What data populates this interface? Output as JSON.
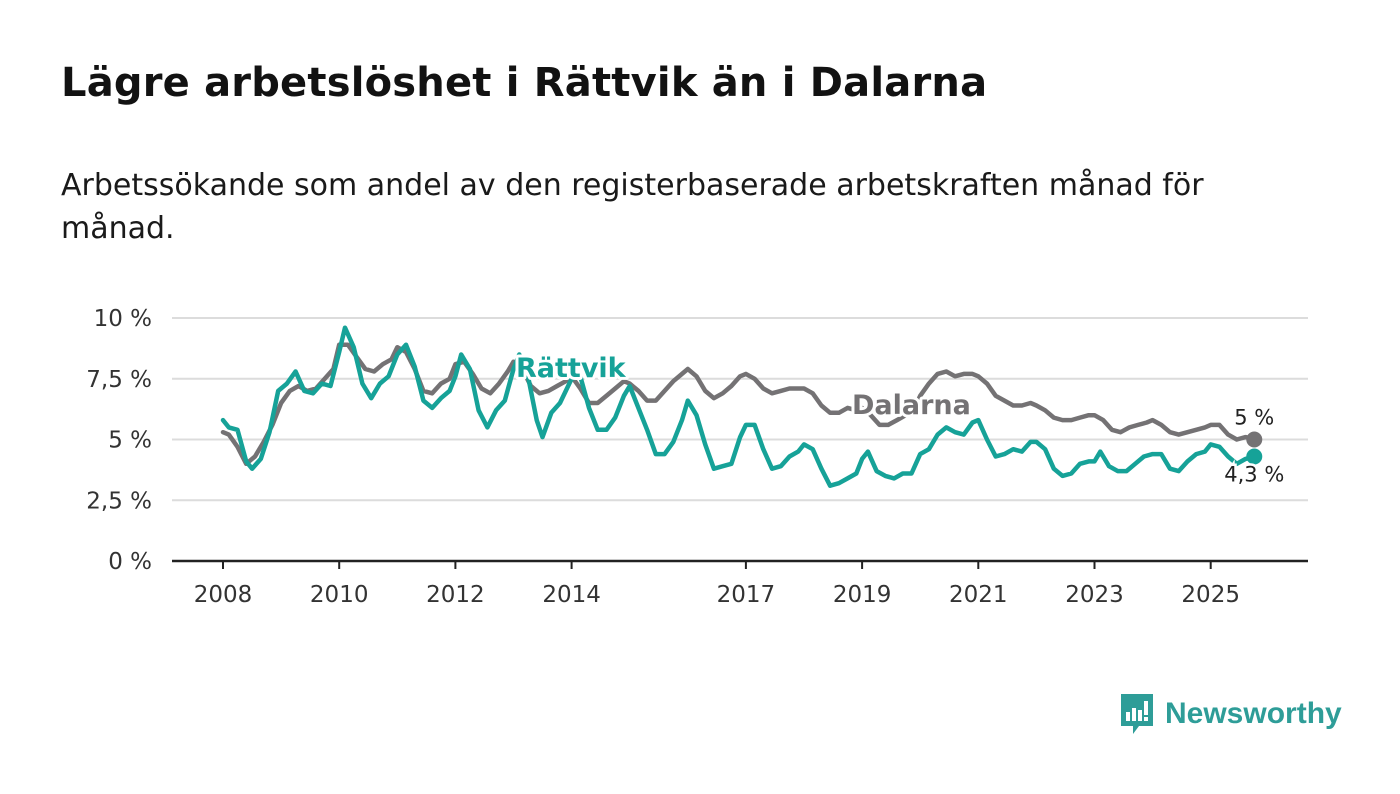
{
  "title": "Lägre arbetslöshet i Rättvik än i Dalarna",
  "subtitle": "Arbetssökande som andel av den registerbaserade arbetskraften månad för månad.",
  "brand": {
    "name": "Newsworthy",
    "color": "#2e9d98",
    "icon": "newsworthy-bar-chart-icon"
  },
  "colors": {
    "dalarna": "#747274",
    "rattvik": "#16a298",
    "grid": "#dcdcdc",
    "axis": "#222222"
  },
  "chart_data": {
    "type": "line",
    "title": "Lägre arbetslöshet i Rättvik än i Dalarna",
    "xlabel": "",
    "ylabel": "",
    "ylim": [
      0,
      10
    ],
    "xlim": [
      2007.6,
      2026.6
    ],
    "y_ticks": [
      0,
      2.5,
      5,
      7.5,
      10
    ],
    "y_tick_labels": [
      "0 %",
      "2,5 %",
      "5 %",
      "7,5 %",
      "10 %"
    ],
    "x_ticks": [
      2008,
      2010,
      2012,
      2014,
      2017,
      2019,
      2021,
      2023,
      2025
    ],
    "x_tick_labels": [
      "2008",
      "2010",
      "2012",
      "2014",
      "2017",
      "2019",
      "2021",
      "2023",
      "2025"
    ],
    "grid": true,
    "legend": "inline labels",
    "end_labels": {
      "dalarna": "5 %",
      "rattvik": "4,3 %"
    },
    "series": [
      {
        "name": "Dalarna",
        "points": [
          [
            2008.0,
            5.3
          ],
          [
            2008.1,
            5.2
          ],
          [
            2008.25,
            4.7
          ],
          [
            2008.4,
            4.0
          ],
          [
            2008.55,
            4.3
          ],
          [
            2008.7,
            4.9
          ],
          [
            2008.85,
            5.6
          ],
          [
            2009.0,
            6.5
          ],
          [
            2009.15,
            7.0
          ],
          [
            2009.3,
            7.2
          ],
          [
            2009.45,
            7.0
          ],
          [
            2009.6,
            7.1
          ],
          [
            2009.75,
            7.5
          ],
          [
            2009.9,
            7.9
          ],
          [
            2010.0,
            8.9
          ],
          [
            2010.15,
            8.9
          ],
          [
            2010.3,
            8.4
          ],
          [
            2010.45,
            7.9
          ],
          [
            2010.6,
            7.8
          ],
          [
            2010.75,
            8.1
          ],
          [
            2010.9,
            8.3
          ],
          [
            2011.0,
            8.8
          ],
          [
            2011.15,
            8.6
          ],
          [
            2011.3,
            7.9
          ],
          [
            2011.45,
            7.0
          ],
          [
            2011.6,
            6.9
          ],
          [
            2011.75,
            7.3
          ],
          [
            2011.9,
            7.5
          ],
          [
            2012.0,
            8.1
          ],
          [
            2012.15,
            8.2
          ],
          [
            2012.3,
            7.7
          ],
          [
            2012.45,
            7.1
          ],
          [
            2012.6,
            6.9
          ],
          [
            2012.75,
            7.3
          ],
          [
            2012.9,
            7.8
          ],
          [
            2013.0,
            8.2
          ],
          [
            2013.15,
            7.9
          ],
          [
            2013.3,
            7.2
          ],
          [
            2013.45,
            6.9
          ],
          [
            2013.6,
            7.0
          ],
          [
            2013.75,
            7.2
          ],
          [
            2013.9,
            7.4
          ],
          [
            2014.0,
            7.6
          ],
          [
            2014.15,
            7.1
          ],
          [
            2014.3,
            6.5
          ],
          [
            2014.45,
            6.5
          ],
          [
            2014.6,
            6.8
          ],
          [
            2014.75,
            7.1
          ],
          [
            2014.9,
            7.4
          ],
          [
            2015.0,
            7.3
          ],
          [
            2015.15,
            7.0
          ],
          [
            2015.3,
            6.6
          ],
          [
            2015.45,
            6.6
          ],
          [
            2015.6,
            7.0
          ],
          [
            2015.75,
            7.4
          ],
          [
            2015.9,
            7.7
          ],
          [
            2016.0,
            7.9
          ],
          [
            2016.15,
            7.6
          ],
          [
            2016.3,
            7.0
          ],
          [
            2016.45,
            6.7
          ],
          [
            2016.6,
            6.9
          ],
          [
            2016.75,
            7.2
          ],
          [
            2016.9,
            7.6
          ],
          [
            2017.0,
            7.7
          ],
          [
            2017.15,
            7.5
          ],
          [
            2017.3,
            7.1
          ],
          [
            2017.45,
            6.9
          ],
          [
            2017.6,
            7.0
          ],
          [
            2017.75,
            7.1
          ],
          [
            2017.9,
            7.1
          ],
          [
            2018.0,
            7.1
          ],
          [
            2018.15,
            6.9
          ],
          [
            2018.3,
            6.4
          ],
          [
            2018.45,
            6.1
          ],
          [
            2018.6,
            6.1
          ],
          [
            2018.75,
            6.3
          ],
          [
            2018.9,
            6.2
          ],
          [
            2019.0,
            6.3
          ],
          [
            2019.15,
            6.0
          ],
          [
            2019.3,
            5.6
          ],
          [
            2019.45,
            5.6
          ],
          [
            2019.6,
            5.8
          ],
          [
            2019.75,
            6.0
          ],
          [
            2019.9,
            6.3
          ],
          [
            2020.0,
            6.8
          ],
          [
            2020.15,
            7.3
          ],
          [
            2020.3,
            7.7
          ],
          [
            2020.45,
            7.8
          ],
          [
            2020.6,
            7.6
          ],
          [
            2020.75,
            7.7
          ],
          [
            2020.9,
            7.7
          ],
          [
            2021.0,
            7.6
          ],
          [
            2021.15,
            7.3
          ],
          [
            2021.3,
            6.8
          ],
          [
            2021.45,
            6.6
          ],
          [
            2021.6,
            6.4
          ],
          [
            2021.75,
            6.4
          ],
          [
            2021.9,
            6.5
          ],
          [
            2022.0,
            6.4
          ],
          [
            2022.15,
            6.2
          ],
          [
            2022.3,
            5.9
          ],
          [
            2022.45,
            5.8
          ],
          [
            2022.6,
            5.8
          ],
          [
            2022.75,
            5.9
          ],
          [
            2022.9,
            6.0
          ],
          [
            2023.0,
            6.0
          ],
          [
            2023.15,
            5.8
          ],
          [
            2023.3,
            5.4
          ],
          [
            2023.45,
            5.3
          ],
          [
            2023.6,
            5.5
          ],
          [
            2023.75,
            5.6
          ],
          [
            2023.9,
            5.7
          ],
          [
            2024.0,
            5.8
          ],
          [
            2024.15,
            5.6
          ],
          [
            2024.3,
            5.3
          ],
          [
            2024.45,
            5.2
          ],
          [
            2024.6,
            5.3
          ],
          [
            2024.75,
            5.4
          ],
          [
            2024.9,
            5.5
          ],
          [
            2025.0,
            5.6
          ],
          [
            2025.15,
            5.6
          ],
          [
            2025.3,
            5.2
          ],
          [
            2025.45,
            5.0
          ],
          [
            2025.6,
            5.1
          ],
          [
            2025.75,
            5.0
          ]
        ]
      },
      {
        "name": "Rättvik",
        "points": [
          [
            2008.0,
            5.8
          ],
          [
            2008.1,
            5.5
          ],
          [
            2008.25,
            5.4
          ],
          [
            2008.4,
            4.1
          ],
          [
            2008.5,
            3.8
          ],
          [
            2008.65,
            4.2
          ],
          [
            2008.8,
            5.3
          ],
          [
            2008.95,
            7.0
          ],
          [
            2009.1,
            7.3
          ],
          [
            2009.25,
            7.8
          ],
          [
            2009.4,
            7.0
          ],
          [
            2009.55,
            6.9
          ],
          [
            2009.7,
            7.3
          ],
          [
            2009.85,
            7.2
          ],
          [
            2010.0,
            8.6
          ],
          [
            2010.1,
            9.6
          ],
          [
            2010.25,
            8.8
          ],
          [
            2010.4,
            7.3
          ],
          [
            2010.55,
            6.7
          ],
          [
            2010.7,
            7.3
          ],
          [
            2010.85,
            7.6
          ],
          [
            2011.0,
            8.5
          ],
          [
            2011.15,
            8.9
          ],
          [
            2011.3,
            8.0
          ],
          [
            2011.45,
            6.6
          ],
          [
            2011.6,
            6.3
          ],
          [
            2011.75,
            6.7
          ],
          [
            2011.9,
            7.0
          ],
          [
            2012.0,
            7.6
          ],
          [
            2012.1,
            8.5
          ],
          [
            2012.25,
            7.9
          ],
          [
            2012.4,
            6.2
          ],
          [
            2012.55,
            5.5
          ],
          [
            2012.7,
            6.2
          ],
          [
            2012.85,
            6.6
          ],
          [
            2013.0,
            7.9
          ],
          [
            2013.1,
            8.5
          ],
          [
            2013.25,
            7.6
          ],
          [
            2013.4,
            5.8
          ],
          [
            2013.5,
            5.1
          ],
          [
            2013.65,
            6.1
          ],
          [
            2013.8,
            6.5
          ],
          [
            2014.0,
            7.5
          ],
          [
            2014.15,
            7.6
          ],
          [
            2014.3,
            6.3
          ],
          [
            2014.45,
            5.4
          ],
          [
            2014.6,
            5.4
          ],
          [
            2014.75,
            5.9
          ],
          [
            2014.9,
            6.8
          ],
          [
            2015.0,
            7.2
          ],
          [
            2015.15,
            6.3
          ],
          [
            2015.3,
            5.4
          ],
          [
            2015.45,
            4.4
          ],
          [
            2015.6,
            4.4
          ],
          [
            2015.75,
            4.9
          ],
          [
            2015.9,
            5.8
          ],
          [
            2016.0,
            6.6
          ],
          [
            2016.15,
            6.0
          ],
          [
            2016.3,
            4.8
          ],
          [
            2016.45,
            3.8
          ],
          [
            2016.6,
            3.9
          ],
          [
            2016.75,
            4.0
          ],
          [
            2016.9,
            5.1
          ],
          [
            2017.0,
            5.6
          ],
          [
            2017.15,
            5.6
          ],
          [
            2017.3,
            4.6
          ],
          [
            2017.45,
            3.8
          ],
          [
            2017.6,
            3.9
          ],
          [
            2017.75,
            4.3
          ],
          [
            2017.9,
            4.5
          ],
          [
            2018.0,
            4.8
          ],
          [
            2018.15,
            4.6
          ],
          [
            2018.3,
            3.8
          ],
          [
            2018.45,
            3.1
          ],
          [
            2018.6,
            3.2
          ],
          [
            2018.75,
            3.4
          ],
          [
            2018.9,
            3.6
          ],
          [
            2019.0,
            4.2
          ],
          [
            2019.1,
            4.5
          ],
          [
            2019.25,
            3.7
          ],
          [
            2019.4,
            3.5
          ],
          [
            2019.55,
            3.4
          ],
          [
            2019.7,
            3.6
          ],
          [
            2019.85,
            3.6
          ],
          [
            2020.0,
            4.4
          ],
          [
            2020.15,
            4.6
          ],
          [
            2020.3,
            5.2
          ],
          [
            2020.45,
            5.5
          ],
          [
            2020.6,
            5.3
          ],
          [
            2020.75,
            5.2
          ],
          [
            2020.9,
            5.7
          ],
          [
            2021.0,
            5.8
          ],
          [
            2021.15,
            5.0
          ],
          [
            2021.3,
            4.3
          ],
          [
            2021.45,
            4.4
          ],
          [
            2021.6,
            4.6
          ],
          [
            2021.75,
            4.5
          ],
          [
            2021.9,
            4.9
          ],
          [
            2022.0,
            4.9
          ],
          [
            2022.15,
            4.6
          ],
          [
            2022.3,
            3.8
          ],
          [
            2022.45,
            3.5
          ],
          [
            2022.6,
            3.6
          ],
          [
            2022.75,
            4.0
          ],
          [
            2022.9,
            4.1
          ],
          [
            2023.0,
            4.1
          ],
          [
            2023.1,
            4.5
          ],
          [
            2023.25,
            3.9
          ],
          [
            2023.4,
            3.7
          ],
          [
            2023.55,
            3.7
          ],
          [
            2023.7,
            4.0
          ],
          [
            2023.85,
            4.3
          ],
          [
            2024.0,
            4.4
          ],
          [
            2024.15,
            4.4
          ],
          [
            2024.3,
            3.8
          ],
          [
            2024.45,
            3.7
          ],
          [
            2024.6,
            4.1
          ],
          [
            2024.75,
            4.4
          ],
          [
            2024.9,
            4.5
          ],
          [
            2025.0,
            4.8
          ],
          [
            2025.15,
            4.7
          ],
          [
            2025.3,
            4.3
          ],
          [
            2025.45,
            4.0
          ],
          [
            2025.6,
            4.2
          ],
          [
            2025.75,
            4.3
          ]
        ]
      }
    ]
  }
}
